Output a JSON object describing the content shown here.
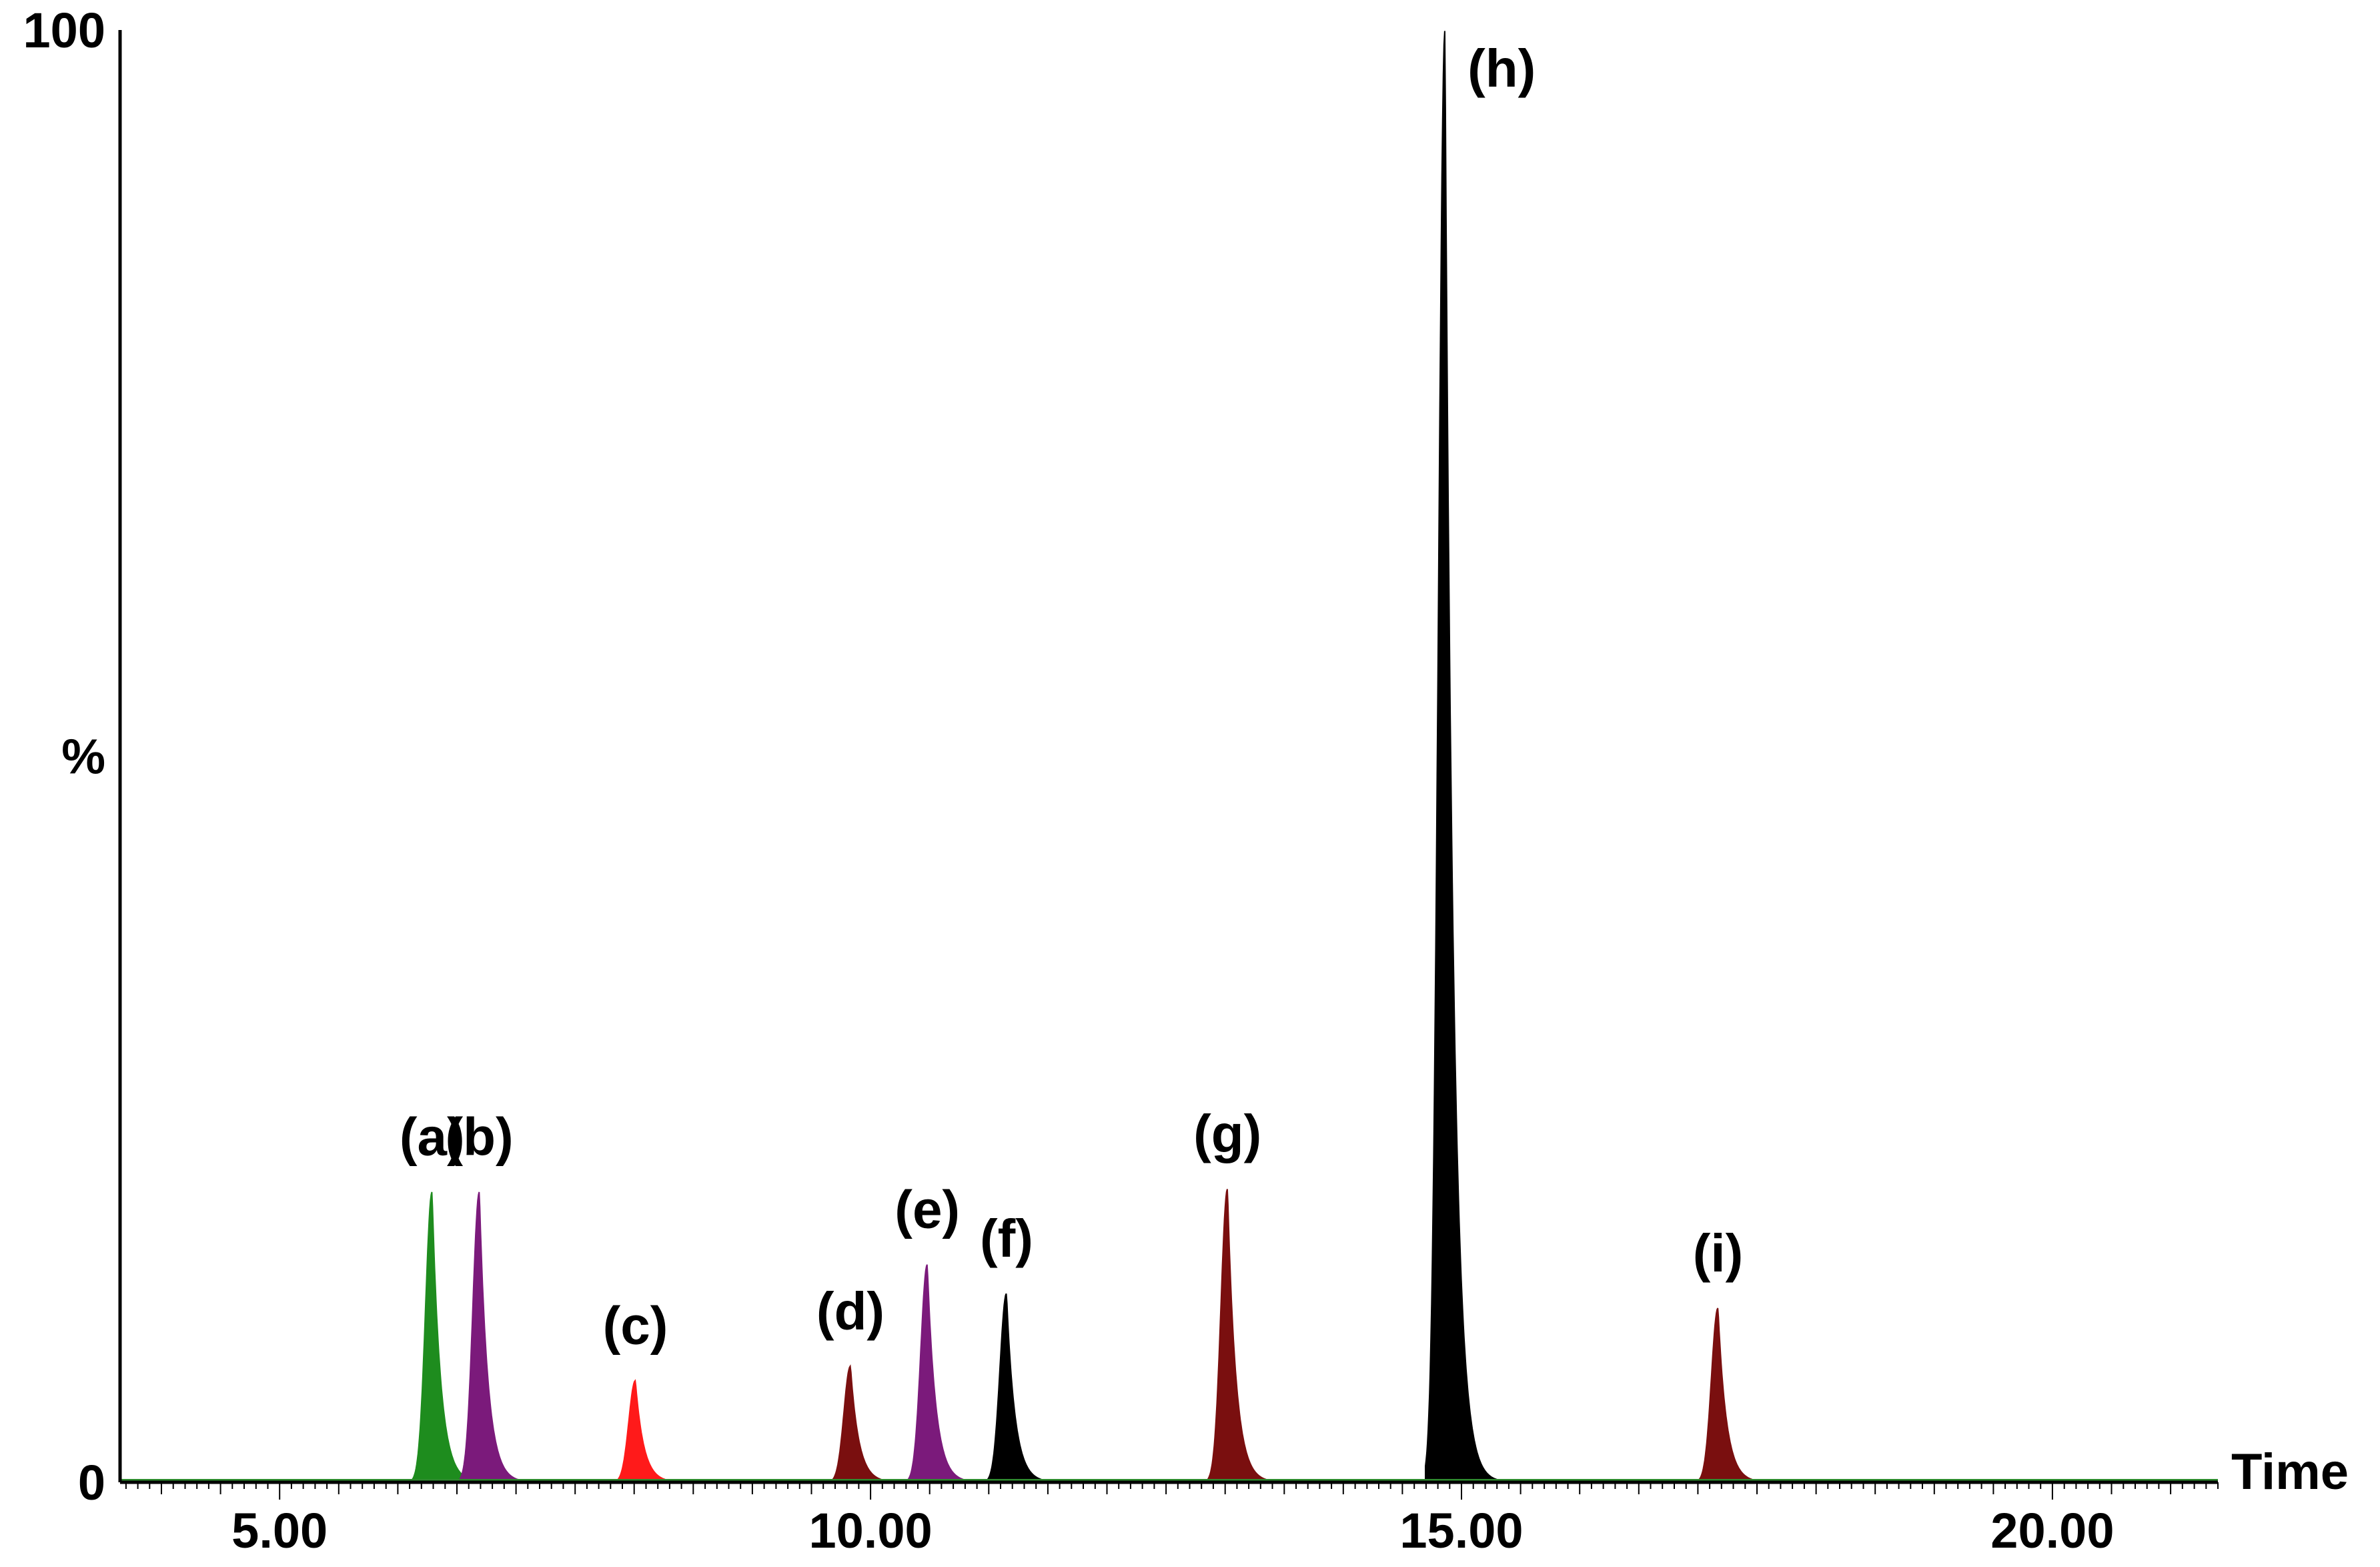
{
  "chart_data": {
    "type": "area",
    "xlabel": "Time",
    "ylabel": "%",
    "xlim": [
      3.65,
      21.4
    ],
    "ylim": [
      0,
      100
    ],
    "x_ticks": [
      {
        "value": 5,
        "label": "5.00"
      },
      {
        "value": 10,
        "label": "10.00"
      },
      {
        "value": 15,
        "label": "15.00"
      },
      {
        "value": 20,
        "label": "20.00"
      }
    ],
    "y_ticks": [
      {
        "value": 100,
        "label": "100"
      },
      {
        "value": 50,
        "label": "%"
      },
      {
        "value": 0,
        "label": "0"
      }
    ],
    "grid": false,
    "legend": "none",
    "baseline_color": "#2e8b2e",
    "series": [
      {
        "label": "(a)",
        "rt": 6.29,
        "height": 20,
        "color": "#1e8c1e"
      },
      {
        "label": "(b)",
        "rt": 6.69,
        "height": 20,
        "color": "#7b1a7b"
      },
      {
        "label": "(c)",
        "rt": 8.01,
        "height": 7,
        "color": "#ff1a1a"
      },
      {
        "label": "(d)",
        "rt": 9.83,
        "height": 8,
        "color": "#7a0f0f"
      },
      {
        "label": "(e)",
        "rt": 10.48,
        "height": 15,
        "color": "#7b1a7b"
      },
      {
        "label": "(f)",
        "rt": 11.15,
        "height": 13,
        "color": "#000000"
      },
      {
        "label": "(g)",
        "rt": 13.02,
        "height": 20.2,
        "color": "#7a0f0f"
      },
      {
        "label": "(h)",
        "rt": 14.86,
        "height": 100,
        "color": "#000000"
      },
      {
        "label": "(i)",
        "rt": 17.17,
        "height": 12,
        "color": "#7a0f0f"
      }
    ]
  }
}
